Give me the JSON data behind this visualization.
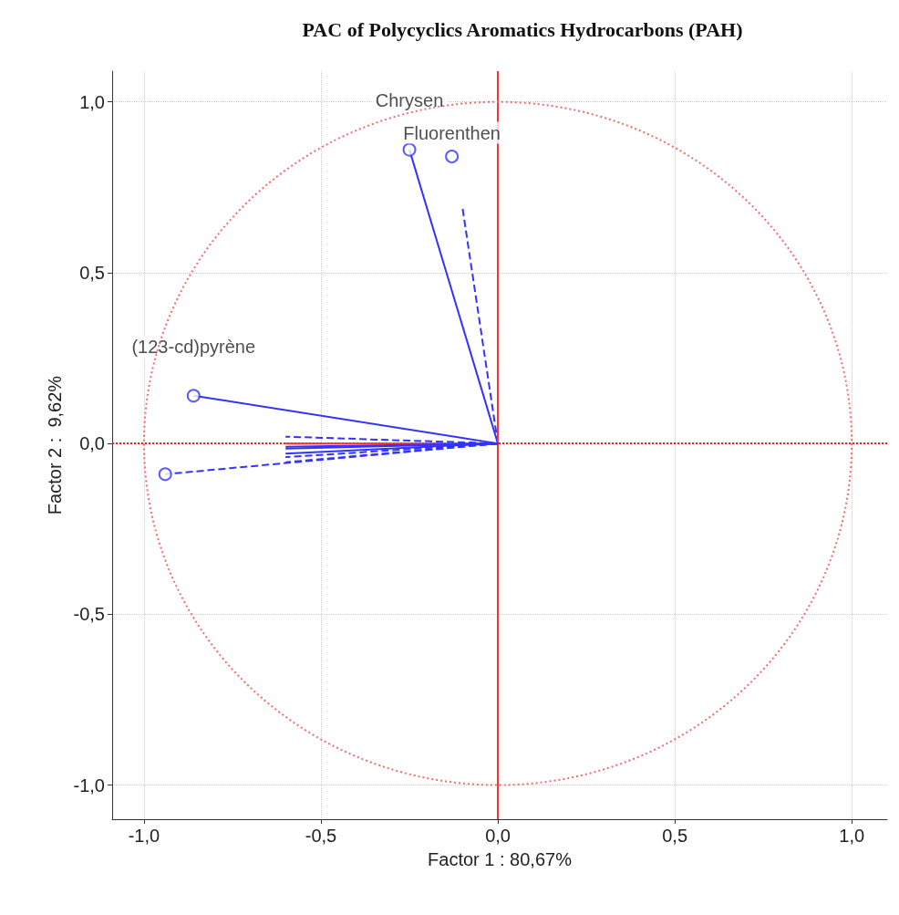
{
  "chart_data": {
    "type": "scatter",
    "title": "PAC of Polycyclics Aromatics Hydrocarbons (PAH)",
    "xlabel": "Factor 1 : 80,67%",
    "ylabel": "Factor 2 :  9,62%",
    "xlim": [
      -1.09,
      1.1
    ],
    "ylim": [
      -1.1,
      1.09
    ],
    "xticks": [
      {
        "value": -1,
        "label": "-1,0"
      },
      {
        "value": -0.5,
        "label": "-0,5"
      },
      {
        "value": 0,
        "label": "0,0"
      },
      {
        "value": 0.5,
        "label": "0,5"
      },
      {
        "value": 1,
        "label": "1,0"
      }
    ],
    "yticks": [
      {
        "value": -1,
        "label": "-1,0"
      },
      {
        "value": -0.5,
        "label": "-0,5"
      },
      {
        "value": 0,
        "label": "0,0"
      },
      {
        "value": 0.5,
        "label": "0,5"
      },
      {
        "value": 1,
        "label": "1,0"
      }
    ],
    "grid": true,
    "ref_lines": [
      {
        "axis": "x",
        "value": 0,
        "color": "#ff3333",
        "line_style": "solid"
      },
      {
        "axis": "y",
        "value": 0,
        "color": "#ff1a1a",
        "line_style": "dotted"
      }
    ],
    "series": [
      {
        "type": "line",
        "color": "#3333ff",
        "line_style": "solid",
        "x": [
          0,
          -0.25
        ],
        "values": [
          0,
          0.86
        ]
      },
      {
        "type": "line",
        "color": "#3333ff",
        "line_style": "dashed",
        "x": [
          0,
          -0.1
        ],
        "values": [
          0,
          0.69
        ]
      },
      {
        "type": "line",
        "color": "#ff3333",
        "line_style": "dashed",
        "x": [
          0,
          0
        ],
        "values": [
          0,
          0.85
        ]
      },
      {
        "type": "line",
        "color": "#3333ff",
        "line_style": "solid",
        "x": [
          0,
          -0.86
        ],
        "values": [
          0,
          0.14
        ]
      },
      {
        "type": "line",
        "color": "#3333ff",
        "line_style": "dashed",
        "x": [
          0,
          -0.94
        ],
        "values": [
          0,
          -0.09
        ]
      },
      {
        "type": "line",
        "color": "#ff3333",
        "line_style": "solid",
        "x": [
          0,
          -0.6
        ],
        "values": [
          0,
          0
        ]
      },
      {
        "type": "line",
        "color": "#3333ff",
        "line_style": "dashed",
        "x": [
          0,
          -0.6
        ],
        "values": [
          0,
          0.02
        ]
      },
      {
        "type": "line",
        "color": "#3333ff",
        "line_style": "solid",
        "x": [
          0,
          -0.6
        ],
        "values": [
          0,
          -0.01
        ]
      },
      {
        "type": "line",
        "color": "#3333ff",
        "line_style": "solid",
        "x": [
          0,
          -0.6
        ],
        "values": [
          0,
          -0.015
        ]
      },
      {
        "type": "line",
        "color": "#3333ff",
        "line_style": "solid",
        "x": [
          0,
          -0.6
        ],
        "values": [
          0,
          -0.03
        ]
      },
      {
        "type": "line",
        "color": "#3333ff",
        "line_style": "dashed",
        "x": [
          0,
          -0.6
        ],
        "values": [
          0,
          -0.04
        ]
      },
      {
        "type": "line",
        "color": "#3333ff",
        "line_style": "dashed",
        "x": [
          0,
          -0.6
        ],
        "values": [
          0,
          -0.055
        ]
      },
      {
        "type": "scatter",
        "color": "#3333ff",
        "marker": "circle",
        "x": [
          -0.25,
          -0.13,
          -0.86,
          -0.94
        ],
        "values": [
          0.86,
          0.84,
          0.14,
          -0.09
        ]
      }
    ],
    "annotations": [
      {
        "text": "Chrysen",
        "x": -0.25,
        "y": 0.86
      },
      {
        "text": "Fluorenthen",
        "x": -0.13,
        "y": 0.84
      },
      {
        "text": "(123-cd)pyrène",
        "x": -0.86,
        "y": 0.14
      }
    ]
  }
}
